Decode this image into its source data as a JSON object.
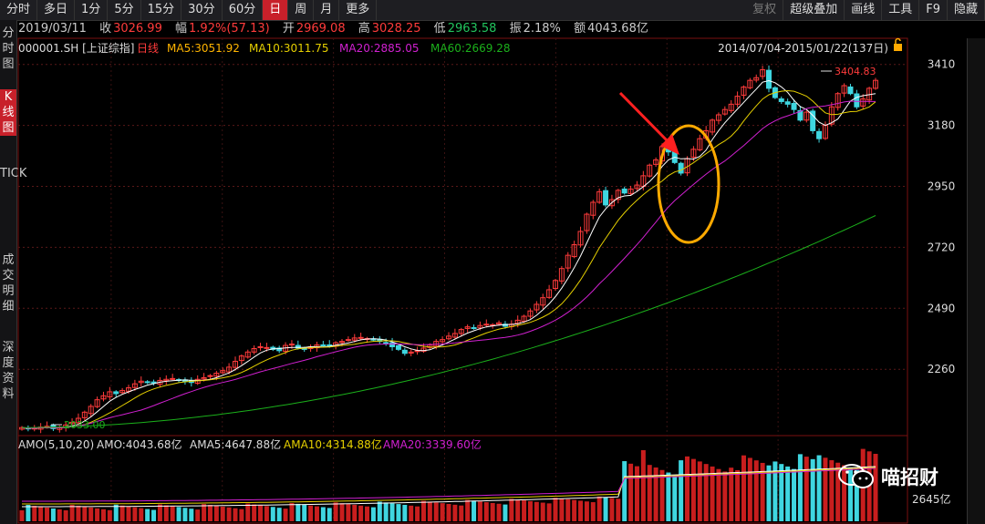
{
  "toolbar": {
    "tabs": [
      "分时",
      "多日",
      "1分",
      "5分",
      "15分",
      "30分",
      "60分",
      "日",
      "周",
      "月",
      "更多"
    ],
    "active_tab": "日",
    "right_items": [
      "复权",
      "超级叠加",
      "画线",
      "工具",
      "F9",
      "隐藏"
    ]
  },
  "leftbar": {
    "items": [
      {
        "label": "分时图",
        "active": false
      },
      {
        "label": "K线图",
        "active": true
      },
      {
        "label": "TICK",
        "active": false
      },
      {
        "label": "成交明细",
        "active": false
      },
      {
        "label": "深度资料",
        "active": false
      }
    ]
  },
  "info": {
    "date": "2019/03/11",
    "close_label": "收",
    "close": "3026.99",
    "change_label": "幅",
    "change": "1.92%(57.13)",
    "open_label": "开",
    "open": "2969.08",
    "high_label": "高",
    "high": "3028.25",
    "low_label": "低",
    "low": "2963.58",
    "amp_label": "振",
    "amp": "2.18%",
    "amount_label": "额",
    "amount": "4043.68亿"
  },
  "legend": {
    "symbol": "000001.SH [上证综指]",
    "daily": "日线",
    "ma5": "MA5:3051.92",
    "ma10": "MA10:3011.75",
    "ma20": "MA20:2885.05",
    "ma60": "MA60:2669.28",
    "range": "2014/07/04-2015/01/22(137日)"
  },
  "volume_legend": {
    "amo_title": "AMO(5,10,20)",
    "amo": "AMO:4043.68亿",
    "ama5": "AMA5:4647.88亿",
    "ama10": "AMA10:4314.88亿",
    "ama20": "AMA20:3339.60亿",
    "bottom_label": "2645亿"
  },
  "watermark": "喵招财",
  "colors": {
    "up": "#ff3b3b",
    "down": "#3fd6e0",
    "ma5": "#ffffff",
    "ma10": "#e6d000",
    "ma20": "#d020d0",
    "ma60": "#1bb01b",
    "active_tab": "#c8202a",
    "annotation": "#ffaa00",
    "arrow": "#ff2020"
  },
  "chart_data": {
    "type": "candlestick",
    "y_ticks": [
      3410,
      3180,
      2950,
      2720,
      2490,
      2260
    ],
    "ylim": [
      2033,
      3410
    ],
    "high_mark": "3404.83",
    "low_mark": "2033.00",
    "closes": [
      2040,
      2035,
      2038,
      2042,
      2045,
      2036,
      2039,
      2050,
      2060,
      2075,
      2098,
      2120,
      2145,
      2160,
      2175,
      2168,
      2180,
      2190,
      2205,
      2215,
      2210,
      2208,
      2218,
      2222,
      2225,
      2220,
      2214,
      2210,
      2222,
      2228,
      2236,
      2245,
      2255,
      2268,
      2290,
      2310,
      2325,
      2338,
      2345,
      2342,
      2335,
      2330,
      2350,
      2355,
      2340,
      2335,
      2345,
      2352,
      2348,
      2350,
      2360,
      2365,
      2372,
      2378,
      2380,
      2376,
      2370,
      2365,
      2360,
      2345,
      2335,
      2320,
      2325,
      2330,
      2340,
      2352,
      2365,
      2372,
      2385,
      2395,
      2410,
      2420,
      2415,
      2425,
      2430,
      2428,
      2435,
      2422,
      2430,
      2445,
      2460,
      2480,
      2505,
      2530,
      2560,
      2595,
      2640,
      2690,
      2730,
      2780,
      2845,
      2890,
      2930,
      2880,
      2900,
      2935,
      2925,
      2940,
      2955,
      2990,
      3030,
      3050,
      3100,
      3080,
      3040,
      3000,
      3055,
      3090,
      3130,
      3160,
      3200,
      3220,
      3240,
      3260,
      3290,
      3325,
      3350,
      3360,
      3390,
      3320,
      3285,
      3270,
      3260,
      3240,
      3200,
      3230,
      3160,
      3130,
      3180,
      3250,
      3300,
      3330,
      3300,
      3250,
      3280,
      3320,
      3350
    ]
  }
}
